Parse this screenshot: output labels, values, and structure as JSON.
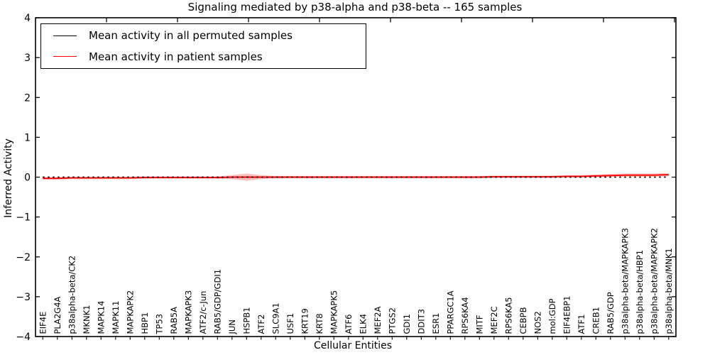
{
  "figure": {
    "background_color": "#ffffff"
  },
  "chart_data": {
    "type": "line",
    "title": "Signaling mediated by p38-alpha and p38-beta -- 165 samples",
    "xlabel": "Cellular Entities",
    "ylabel": "Inferred Activity",
    "ylim": [
      -4,
      4
    ],
    "yticks": [
      -4,
      -3,
      -2,
      -1,
      0,
      1,
      2,
      3,
      4
    ],
    "ytick_labels": [
      "−4",
      "−3",
      "−2",
      "−1",
      "0",
      "1",
      "2",
      "3",
      "4"
    ],
    "grid": false,
    "legend_position": "upper left",
    "categories": [
      "EIF4E",
      "PLA2G4A",
      "p38alpha-beta/CK2",
      "MKNK1",
      "MAPK14",
      "MAPK11",
      "MAPKAPK2",
      "HBP1",
      "TP53",
      "RAB5A",
      "MAPKAPK3",
      "ATF2/c-Jun",
      "RAB5/GDP/GDI1",
      "JUN",
      "HSPB1",
      "ATF2",
      "SLC9A1",
      "USF1",
      "KRT19",
      "KRT8",
      "MAPKAPK5",
      "ATF6",
      "ELK4",
      "MEF2A",
      "PTGS2",
      "GDI1",
      "DDIT3",
      "ESR1",
      "PPARGC1A",
      "RPS6KA4",
      "MITF",
      "MEF2C",
      "RPS6KA5",
      "CEBPB",
      "NOS2",
      "mol:GDP",
      "EIF4EBP1",
      "ATF1",
      "CREB1",
      "RAB5/GDP",
      "p38alpha-beta/MAPKAPK3",
      "p38alpha-beta/HBP1",
      "p38alpha-beta/MAPKAPK2",
      "p38alpha-beta/MNK1"
    ],
    "series": [
      {
        "name": "Mean activity in all permuted samples",
        "color": "#000000",
        "line_style": "dotted",
        "values": [
          0,
          0,
          0,
          0,
          0,
          0,
          0,
          0,
          0,
          0,
          0,
          0,
          0,
          0,
          0,
          0,
          0,
          0,
          0,
          0,
          0,
          0,
          0,
          0,
          0,
          0,
          0,
          0,
          0,
          0,
          0,
          0,
          0,
          0,
          0,
          0,
          0,
          0,
          0,
          0,
          0,
          0,
          0,
          0
        ]
      },
      {
        "name": "Mean activity in patient samples",
        "color": "#ff0000",
        "line_style": "solid",
        "values": [
          -0.03,
          -0.03,
          -0.02,
          -0.02,
          -0.02,
          -0.02,
          -0.02,
          -0.01,
          -0.01,
          -0.01,
          -0.01,
          -0.01,
          -0.01,
          0,
          0,
          0,
          0,
          0,
          0,
          0,
          0,
          0,
          0,
          0,
          0,
          0,
          0,
          0,
          0,
          0,
          0,
          0.01,
          0.01,
          0.01,
          0.01,
          0.01,
          0.02,
          0.02,
          0.03,
          0.04,
          0.05,
          0.05,
          0.05,
          0.06
        ],
        "band_halfwidth": [
          0.03,
          0.03,
          0.03,
          0.03,
          0.03,
          0.03,
          0.03,
          0.03,
          0.03,
          0.03,
          0.03,
          0.03,
          0.03,
          0.05,
          0.09,
          0.05,
          0.03,
          0.03,
          0.03,
          0.03,
          0.03,
          0.03,
          0.03,
          0.03,
          0.03,
          0.03,
          0.03,
          0.03,
          0.03,
          0.03,
          0.03,
          0.03,
          0.03,
          0.03,
          0.03,
          0.03,
          0.03,
          0.03,
          0.035,
          0.04,
          0.04,
          0.04,
          0.04,
          0.04
        ],
        "band_color": "#ff0000",
        "band_opacity": 0.25
      }
    ]
  }
}
